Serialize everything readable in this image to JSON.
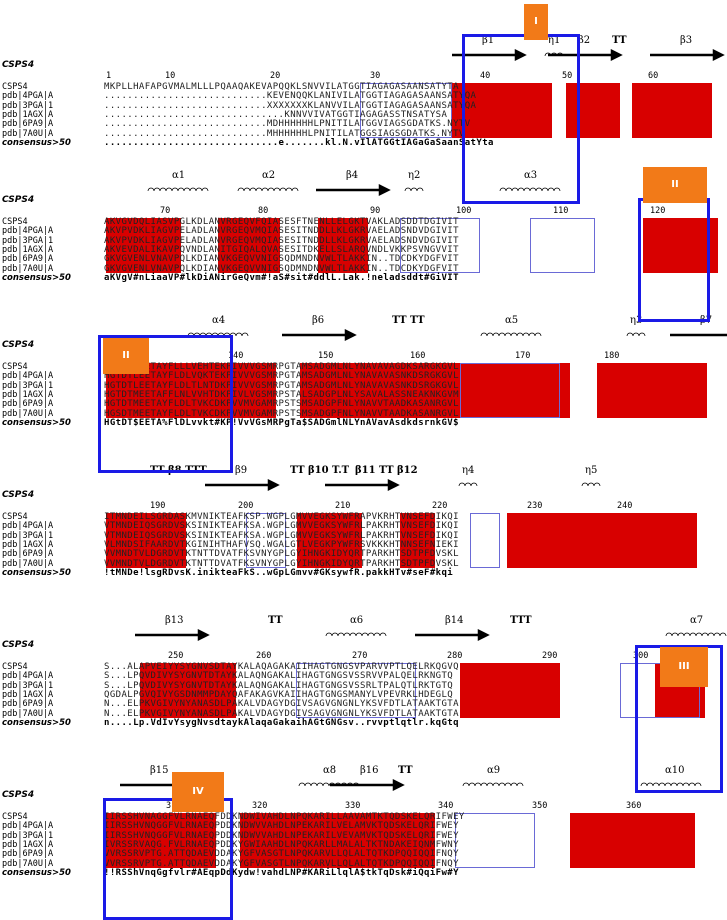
{
  "figure_type": "sequence-alignment",
  "blocks": [
    {
      "title": "CSPS4",
      "numbers": [
        "1",
        "10",
        "20",
        "30",
        "40",
        "50",
        "60"
      ],
      "structure": [
        "β1",
        "η1",
        "β2",
        "TT",
        "β3"
      ],
      "rows": [
        {
          "label": "CSPS4",
          "seq": "MKPLLHAFAPGVMALMLLLPQAAQAKEVAPQQKLSNVVILATGGTIAGAGASAANSATYTA"
        },
        {
          "label": "pdb|4PGA|A",
          "seq": "............................KEVENQQKLANIVILATGGTIAGAGASAANSATYQA"
        },
        {
          "label": "pdb|3PGA|1",
          "seq": "............................XXXXXXXKLANVVILATGGTIAGAGASAANSATYQA"
        },
        {
          "label": "pdb|1AGX|A",
          "seq": "...............................KNNVVIVATGGTIAGAGASSTNSATYSA"
        },
        {
          "label": "pdb|6PA9|A",
          "seq": "............................MDHHHHHHLPNITILATGGVIAGSGDATKS.NYTV"
        },
        {
          "label": "pdb|7A0U|A",
          "seq": "............................MHHHHHHLPNITILATGGSIAGSGDATKS.NYTV"
        },
        {
          "label": "consensus>50",
          "seq": "..............................e.......kl.N.vIlATGGtIAGaGaSaanSatYta"
        }
      ],
      "box_tag": "I"
    },
    {
      "title": "CSPS4",
      "numbers": [
        "70",
        "80",
        "90",
        "100",
        "110",
        "120"
      ],
      "structure": [
        "α1",
        "α2",
        "β4",
        "η2",
        "α3"
      ],
      "rows": [
        {
          "label": "CSPS4",
          "seq": "AKVGVDQLIASVPGLKDLANVRGEQVFQIASESFTNENLLELGKTVAKLADSDDTDGIVIT"
        },
        {
          "label": "pdb|4PGA|A",
          "seq": "AKVPVDKLIAGVPELADLANVRGEQVMQIASESITNDDLLKLGKRVAELADSNDVDGIVIT"
        },
        {
          "label": "pdb|3PGA|1",
          "seq": "AKVPVDKLIAGVPELADLANVRGEQVMQIASESITNDDLLKLGKRVAELADSNDVDGIVIT"
        },
        {
          "label": "pdb|1AGX|A",
          "seq": "AKVEVDALIKAVPQVNDLANITGIQALQVASESITDKELLSLARQVNDLVKKPSVNGVVIT"
        },
        {
          "label": "pdb|6PA9|A",
          "seq": "GKVGVENLVNAVPQLKDIANVKGEQVVNIGSQDMNDNVWLTLAKKIN..TDCDKYDGFVIT"
        },
        {
          "label": "pdb|7A0U|A",
          "seq": "GKVGVENLVNAVPQLKDIANVKGEQVVNIGSQDMNDNVWLTLAKKIN..TDCDKYDGFVIT"
        },
        {
          "label": "consensus>50",
          "seq": "aKVgV#nLiaaVP#lkDiANirGeQvm#!aS#sit#ddlL.Lak.!neladsddt#GiVIT"
        }
      ],
      "box_tag": "II"
    },
    {
      "title": "CSPS4",
      "numbers": [
        "130",
        "140",
        "150",
        "160",
        "170",
        "180"
      ],
      "structure": [
        "α4",
        "β6",
        "TT TT",
        "α5",
        "η3",
        "β7"
      ],
      "rows": [
        {
          "label": "CSPS4",
          "seq": "HGTDTLEETAYFLLLVEHTEKPIVVVGSMRPGTAMSADGMLNLYNAVAVAGDKSARGKGVL"
        },
        {
          "label": "pdb|4PGA|A",
          "seq": "HGTDTLEETAYFLDLVQKTEKPIVVVGSMRPGTAMSADGMLNLYNAVAVASNKDSRGKGVL"
        },
        {
          "label": "pdb|3PGA|1",
          "seq": "HGTDTLEETAYFLDLTLNTDKPIVVVGSMRPGTAMSADGMLNLYNAVAVASNKDSRGKGVL"
        },
        {
          "label": "pdb|1AGX|A",
          "seq": "HGTDTMEETAFFLNLVVHTDKPIVLVGSMRPSTALSADGPLNLYSAVALASSNEAKNKGVM"
        },
        {
          "label": "pdb|6PA9|A",
          "seq": "HGTDTMEETAYFLDLTVKCDKPVVMVGAMRPSTSMSADGPFNLYNAVVTAADKASANRGVL"
        },
        {
          "label": "pdb|7A0U|A",
          "seq": "HGSDTMEETAYFLDLTVKCDKPVVMVGAMRPSTSMSADGPFNLYNAVVTAADKASANRGVL"
        },
        {
          "label": "consensus>50",
          "seq": "HGtDT$EETA%FlDLvvkt#KP!VvVGsMRPgTa$SADGmlNLYnAVavAsdkdsrnkGV$"
        }
      ],
      "box_tag": "II"
    },
    {
      "title": "CSPS4",
      "numbers": [
        "190",
        "200",
        "210",
        "220",
        "230",
        "240"
      ],
      "structure": [
        "TT β8 TTT",
        "β9",
        "TT β10 T.T",
        "β11 TT β12",
        "η4",
        "η5"
      ],
      "rows": [
        {
          "label": "CSPS4",
          "seq": "ITMNDEILSGRDASKMVNIKTEAFKSP.WGPLGMVVEGKSYWFRAPVKRHTVNSEFDIKQI"
        },
        {
          "label": "pdb|4PGA|A",
          "seq": "VTMNDEIQSGRDVSKSINIKTEAFKSA.WGPLGMVVEGKSYWFRLPAKRHTVNSEFDIKQI"
        },
        {
          "label": "pdb|3PGA|1",
          "seq": "VTMNDEIQSGRDVSKSINIKTEAFKSA.WGPLGMVVEGKSYWFRLPAKRHTVNSEFDIKQI"
        },
        {
          "label": "pdb|1AGX|A",
          "seq": "VLMNDSIFAARDVTKGINIHTHAFVSQ.WGALGTLVEGKPYWFRSVKKKHTNNSEFNIEKI"
        },
        {
          "label": "pdb|6PA9|A",
          "seq": "VVMNDTVLDGRDVTKTNTTDVATFKSVNYGPLGYIHNGKIDYQRTPARKHTSDTPFDVSKL"
        },
        {
          "label": "pdb|7A0U|A",
          "seq": "VVMNDTVLDGRDVTKTNTTDVATFKSVNYGPLGYIHNGKIDYQRTPARKHTSDTPFDVSKL"
        },
        {
          "label": "consensus>50",
          "seq": "!tMNDe!lsgRDvsK.inikteaFkS..wGpLGmvv#GKsywfR.pakkHTv#seF#kqi"
        }
      ],
      "box_tag": ""
    },
    {
      "title": "CSPS4",
      "numbers": [
        "250",
        "260",
        "270",
        "280",
        "290",
        "300"
      ],
      "structure": [
        "β13",
        "TT",
        "α6",
        "β14",
        "TTT",
        "α7"
      ],
      "rows": [
        {
          "label": "CSPS4",
          "seq": "S...ALAPVEIYYSYGNVSDTAYKALAQAGAKAIIHAGTGNGSVPARVVPTLQELRKQGVQ"
        },
        {
          "label": "pdb|4PGA|A",
          "seq": "S...LPQVDIVYSYGNVTDTAYKALAQNGAKALIHAGTGNGSVSSRVVPALQELRKNGTQ"
        },
        {
          "label": "pdb|3PGA|1",
          "seq": "S...LPQVDIVYSYGNVTDTAYKALAQNGAKALIHAGTGNGSVSSRLTPALQTLRKTGTQ"
        },
        {
          "label": "pdb|1AGX|A",
          "seq": "QGDALPGVQIVYGSDNMMPDAYQAFAKAGVKAIIHAGTGNGSMANYLVPEVRKLHDEGLQ"
        },
        {
          "label": "pdb|6PA9|A",
          "seq": "N...ELPKVGIVYNYANASDLPAKALVDAGYDGIVSAGVGNGNLYKSVFDTLATAAKTGTA"
        },
        {
          "label": "pdb|7A0U|A",
          "seq": "N...ELPKVGIVYNYANASDLPAKALVDAGYDGIVSAGVGNGNLYKSVFDTLATAAKTGTA"
        },
        {
          "label": "consensus>50",
          "seq": "n....Lp.VdIvYsygNvsdtaykAlaqaGakaihAGtGNGsv..rvvptlqtlr.kqGtq"
        }
      ],
      "box_tag": "III"
    },
    {
      "title": "CSPS4",
      "numbers": [
        "310",
        "320",
        "330",
        "340",
        "350",
        "360"
      ],
      "structure": [
        "β15",
        "α8",
        "β16",
        "TT",
        "α9",
        "α10"
      ],
      "rows": [
        {
          "label": "CSPS4",
          "seq": "IIRSSHVNAGGFVLRNAEQFDDKNDWIVAHDLNPQKARILLAAVAMTKTQDSKELQRIFWEY"
        },
        {
          "label": "pdb|4PGA|A",
          "seq": "IIRSSHVNQGGFVLRNAEQPDDKNDWVVAHDLNPEKARILVELAMVKTQDSKELQRIFWEY"
        },
        {
          "label": "pdb|3PGA|1",
          "seq": "IIRSSHVNQGGFVLRNAEQPDDKNDWVVAHDLNPEKARILVEVAMVKTQDSKELQRIFWEY"
        },
        {
          "label": "pdb|1AGX|A",
          "seq": "IVRSSRVAQG.FVLRNAEQPDDKYGWIAAHDLNPQKARLLMALALTKTNDAKEIQNMFWNY"
        },
        {
          "label": "pdb|6PA9|A",
          "seq": "VVRSSRVPTG.ATTQDAEVDDAKYGFVASGTLNPQKARVLLQLALTQTKDPQQIQQIFNQY"
        },
        {
          "label": "pdb|7A0U|A",
          "seq": "VVRSSRVPTG.ATTQDAEVDDAKYGFVASGTLNPQKARVLLQLALTQTKDPQQIQQIFNQY"
        },
        {
          "label": "consensus>50",
          "seq": "!!RSShVnqGgfvlr#AEqpDdKydw!vahdLNP#KARiLlqlA$tkTqDsk#iQqiFw#Y"
        }
      ],
      "box_tag": "IV"
    }
  ],
  "colors": {
    "conserved": "#d80000",
    "similar_outline": "#6a6ad6",
    "region_box": "#1a1ae6",
    "tag": "#f27a18"
  }
}
